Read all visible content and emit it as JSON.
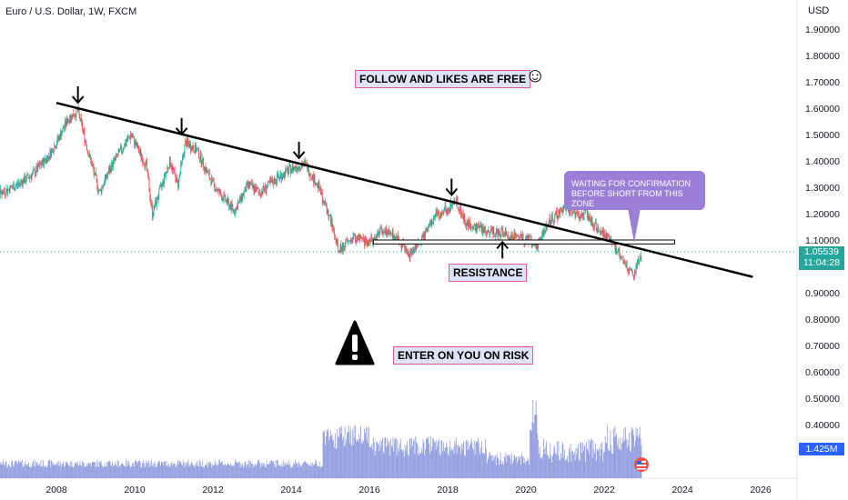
{
  "header": {
    "title": "Euro / U.S. Dollar, 1W, FXCM",
    "currency": "USD"
  },
  "chart_data": {
    "type": "candlestick",
    "symbol": "EURUSD",
    "interval": "1W",
    "x_ticks": [
      "2008",
      "2010",
      "2012",
      "2014",
      "2016",
      "2018",
      "2020",
      "2022",
      "2024",
      "2026"
    ],
    "y_ticks": [
      "1.90000",
      "1.80000",
      "1.70000",
      "1.60000",
      "1.50000",
      "1.40000",
      "1.30000",
      "1.20000",
      "1.10000",
      "0.90000",
      "0.80000",
      "0.70000",
      "0.60000",
      "0.50000",
      "0.40000"
    ],
    "ylim": [
      0.33,
      1.96
    ],
    "price_path": [
      [
        2006.2,
        1.26
      ],
      [
        2006.6,
        1.28
      ],
      [
        2007.0,
        1.31
      ],
      [
        2007.4,
        1.35
      ],
      [
        2007.8,
        1.42
      ],
      [
        2008.0,
        1.47
      ],
      [
        2008.3,
        1.56
      ],
      [
        2008.55,
        1.59
      ],
      [
        2008.8,
        1.44
      ],
      [
        2009.1,
        1.28
      ],
      [
        2009.4,
        1.38
      ],
      [
        2009.9,
        1.5
      ],
      [
        2010.3,
        1.38
      ],
      [
        2010.45,
        1.2
      ],
      [
        2010.9,
        1.4
      ],
      [
        2011.1,
        1.31
      ],
      [
        2011.3,
        1.47
      ],
      [
        2011.6,
        1.44
      ],
      [
        2011.9,
        1.34
      ],
      [
        2012.1,
        1.29
      ],
      [
        2012.55,
        1.21
      ],
      [
        2012.9,
        1.31
      ],
      [
        2013.2,
        1.28
      ],
      [
        2013.6,
        1.33
      ],
      [
        2014.0,
        1.37
      ],
      [
        2014.35,
        1.39
      ],
      [
        2014.7,
        1.3
      ],
      [
        2015.0,
        1.18
      ],
      [
        2015.2,
        1.06
      ],
      [
        2015.6,
        1.11
      ],
      [
        2016.0,
        1.09
      ],
      [
        2016.3,
        1.14
      ],
      [
        2016.7,
        1.11
      ],
      [
        2017.0,
        1.04
      ],
      [
        2017.4,
        1.12
      ],
      [
        2017.7,
        1.19
      ],
      [
        2018.0,
        1.22
      ],
      [
        2018.2,
        1.25
      ],
      [
        2018.5,
        1.16
      ],
      [
        2018.9,
        1.14
      ],
      [
        2019.5,
        1.12
      ],
      [
        2020.1,
        1.1
      ],
      [
        2020.25,
        1.07
      ],
      [
        2020.6,
        1.17
      ],
      [
        2020.9,
        1.21
      ],
      [
        2021.0,
        1.23
      ],
      [
        2021.3,
        1.19
      ],
      [
        2021.5,
        1.21
      ],
      [
        2021.9,
        1.13
      ],
      [
        2022.2,
        1.09
      ],
      [
        2022.5,
        1.02
      ],
      [
        2022.75,
        0.96
      ],
      [
        2022.9,
        1.03
      ],
      [
        2022.95,
        1.055
      ]
    ],
    "last_price": "1.05539",
    "countdown": "11:04:28",
    "volume_label": "1.425M",
    "trendline": [
      [
        2008.0,
        1.62
      ],
      [
        2025.8,
        0.96
      ]
    ],
    "resistance_zone": [
      1.085,
      1.1
    ],
    "down_arrows": [
      [
        2008.55,
        1.6
      ],
      [
        2011.2,
        1.48
      ],
      [
        2014.2,
        1.39
      ],
      [
        2018.1,
        1.25
      ]
    ],
    "up_arrow": [
      2019.4,
      1.03
    ]
  },
  "annotations": {
    "follow": "FOLLOW AND LIKES ARE FREE",
    "resistance": "RESISTANCE",
    "enter": "ENTER ON YOU ON RISK",
    "callout": "WAITING FOR CONFIRMATION BEFORE SHORT FROM THIS ZONE",
    "smile": "☺"
  },
  "colors": {
    "up": "#26a69a",
    "down": "#ef5350",
    "line": "#000000",
    "volume": "#7d8bd8",
    "price_box": "#26a69a",
    "volume_box": "#2962ff",
    "callout": "#9b7fd6"
  }
}
